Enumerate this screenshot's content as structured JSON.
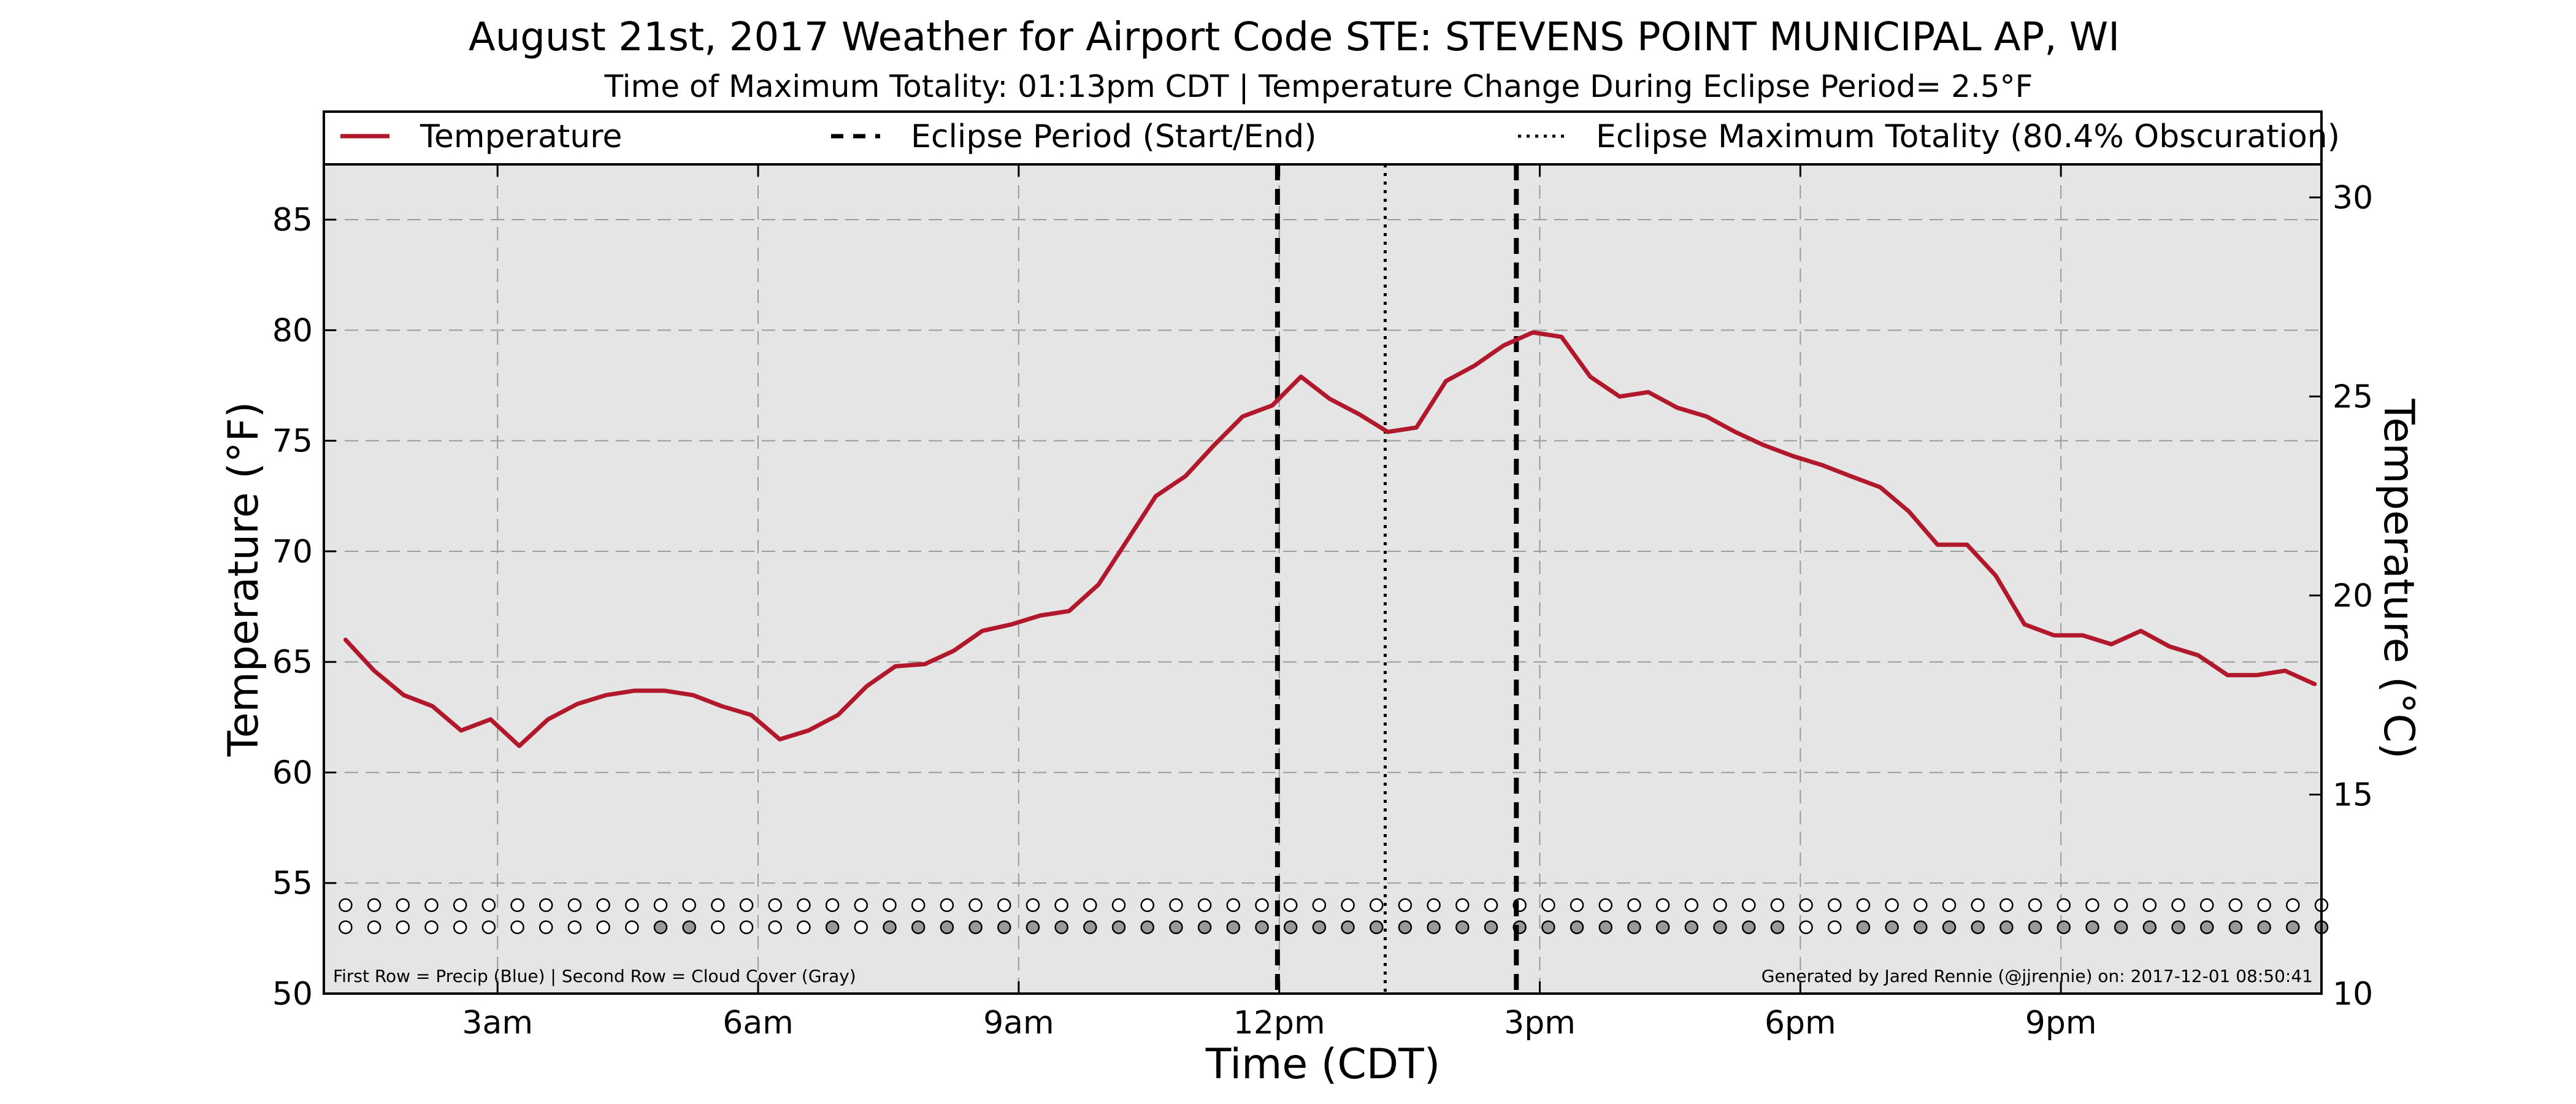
{
  "chart_data": {
    "type": "line",
    "title": "August 21st, 2017 Weather for Airport Code STE: STEVENS POINT MUNICIPAL AP, WI",
    "subtitle": "Time of Maximum Totality: 01:13pm CDT | Temperature Change During Eclipse Period= 2.5°F",
    "xlabel": "Time (CDT)",
    "ylabel": "Temperature (°F)",
    "ylabel_right": "Temperature (°C)",
    "xlim": [
      1.0,
      24.0
    ],
    "ylim": [
      50,
      87.5
    ],
    "ylim_right": [
      10,
      30.83
    ],
    "x_ticks": [
      {
        "x": 3,
        "label": "3am"
      },
      {
        "x": 6,
        "label": "6am"
      },
      {
        "x": 9,
        "label": "9am"
      },
      {
        "x": 12,
        "label": "12pm"
      },
      {
        "x": 15,
        "label": "3pm"
      },
      {
        "x": 18,
        "label": "6pm"
      },
      {
        "x": 21,
        "label": "9pm"
      }
    ],
    "y_ticks": [
      50,
      55,
      60,
      65,
      70,
      75,
      80,
      85
    ],
    "y_ticks_right": [
      10,
      15,
      20,
      25,
      30
    ],
    "grid": true,
    "legend_position": "top",
    "legend": {
      "temperature": "Temperature",
      "eclipse_period": "Eclipse Period (Start/End)",
      "max_totality": "Eclipse Maximum Totality (80.4% Obscuration)"
    },
    "series": [
      {
        "name": "Temperature",
        "color": "#b2182b",
        "x": [
          1.25,
          1.58,
          1.92,
          2.25,
          2.58,
          2.92,
          3.25,
          3.58,
          3.92,
          4.25,
          4.58,
          4.92,
          5.25,
          5.58,
          5.92,
          6.25,
          6.58,
          6.92,
          7.25,
          7.58,
          7.92,
          8.25,
          8.58,
          8.92,
          9.25,
          9.58,
          9.92,
          10.25,
          10.58,
          10.92,
          11.25,
          11.58,
          11.92,
          12.25,
          12.58,
          12.92,
          13.25,
          13.58,
          13.92,
          14.25,
          14.58,
          14.92,
          15.25,
          15.58,
          15.92,
          16.25,
          16.58,
          16.92,
          17.25,
          17.58,
          17.92,
          18.25,
          18.58,
          18.92,
          19.25,
          19.58,
          19.92,
          20.25,
          20.58,
          20.92,
          21.25,
          21.58,
          21.92,
          22.25,
          22.58,
          22.92,
          23.25,
          23.58,
          23.92
        ],
        "values": [
          66.0,
          64.6,
          63.5,
          63.0,
          61.9,
          62.4,
          61.2,
          62.4,
          63.1,
          63.5,
          63.7,
          63.7,
          63.5,
          63.0,
          62.6,
          61.5,
          61.9,
          62.6,
          63.9,
          64.8,
          64.9,
          65.5,
          66.4,
          66.7,
          67.1,
          67.3,
          68.5,
          70.5,
          72.5,
          73.4,
          74.8,
          76.1,
          76.6,
          77.9,
          76.9,
          76.2,
          75.4,
          75.6,
          77.7,
          78.4,
          79.3,
          79.9,
          79.7,
          77.9,
          77.0,
          77.2,
          76.5,
          76.1,
          75.4,
          74.8,
          74.3,
          73.9,
          73.4,
          72.9,
          71.8,
          70.3,
          70.3,
          68.9,
          66.7,
          66.2,
          66.2,
          65.8,
          66.4,
          65.7,
          65.3,
          64.4,
          64.4,
          64.6,
          64.0
        ]
      }
    ],
    "eclipse_period": {
      "start": 11.98,
      "end": 14.73,
      "color": "#000000",
      "style": "dashed"
    },
    "max_totality": {
      "x": 13.22,
      "color": "#000000",
      "style": "dotted"
    },
    "precip_row": {
      "y": 54.0,
      "x_start": 1.25,
      "x_end": 24.0,
      "count": 70,
      "filled_indices": []
    },
    "cloud_row": {
      "y": 53.0,
      "x_start": 1.25,
      "x_end": 24.0,
      "count": 70,
      "filled_indices": [
        11,
        12,
        17,
        19,
        20,
        21,
        22,
        23,
        24,
        25,
        26,
        27,
        28,
        29,
        30,
        31,
        32,
        33,
        34,
        35,
        36,
        37,
        38,
        39,
        40,
        41,
        42,
        43,
        44,
        45,
        46,
        47,
        48,
        49,
        50,
        53,
        54,
        55,
        56,
        57,
        58,
        59,
        60,
        61,
        62,
        63,
        64,
        65,
        66,
        67,
        68,
        69
      ]
    },
    "row_colors": {
      "precip_fill": "#4a7fc1",
      "cloud_fill": "#999999",
      "empty_fill": "#ffffff"
    },
    "footnote_left": "First Row = Precip (Blue) | Second Row = Cloud Cover (Gray)",
    "footnote_right": "Generated by Jared Rennie (@jjrennie) on: 2017-12-01 08:50:41",
    "plot_background": "#e5e5e5"
  }
}
